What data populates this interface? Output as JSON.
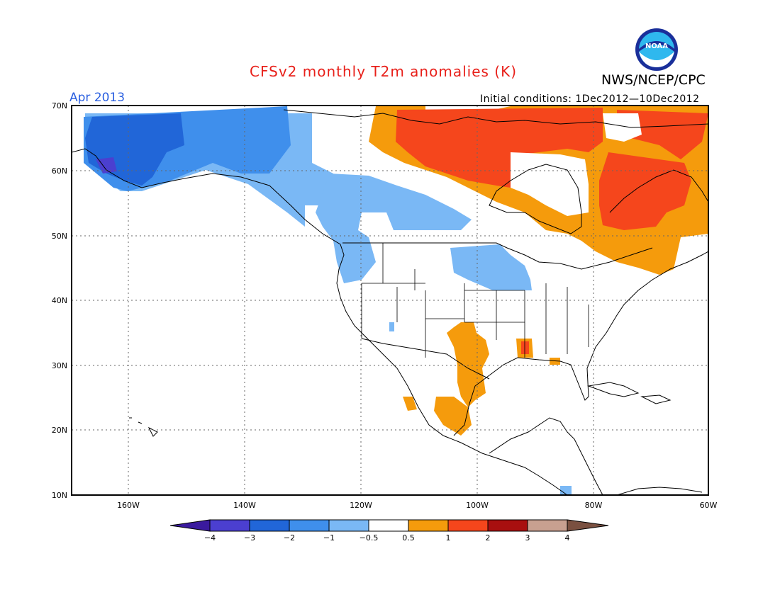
{
  "header": {
    "title": "CFSv2 monthly T2m anomalies (K)",
    "org": "NWS/NCEP/CPC",
    "logo_text": "NOAA",
    "month": "Apr 2013",
    "initial_conditions": "Initial conditions: 1Dec2012—10Dec2012"
  },
  "map": {
    "lat_labels": [
      "70N",
      "60N",
      "50N",
      "40N",
      "30N",
      "20N",
      "10N"
    ],
    "lon_labels": [
      "160W",
      "140W",
      "120W",
      "100W",
      "80W",
      "60W"
    ]
  },
  "colorbar": {
    "labels": [
      "−4",
      "−3",
      "−2",
      "−1",
      "−0.5",
      "0.5",
      "1",
      "2",
      "3",
      "4"
    ],
    "colors": [
      "#3a1a9e",
      "#4b3fd0",
      "#2166d8",
      "#3f8fec",
      "#7ab8f5",
      "#ffffff",
      "#f59b0c",
      "#f5461c",
      "#a80f0f",
      "#c8a090",
      "#7a5040"
    ]
  }
}
